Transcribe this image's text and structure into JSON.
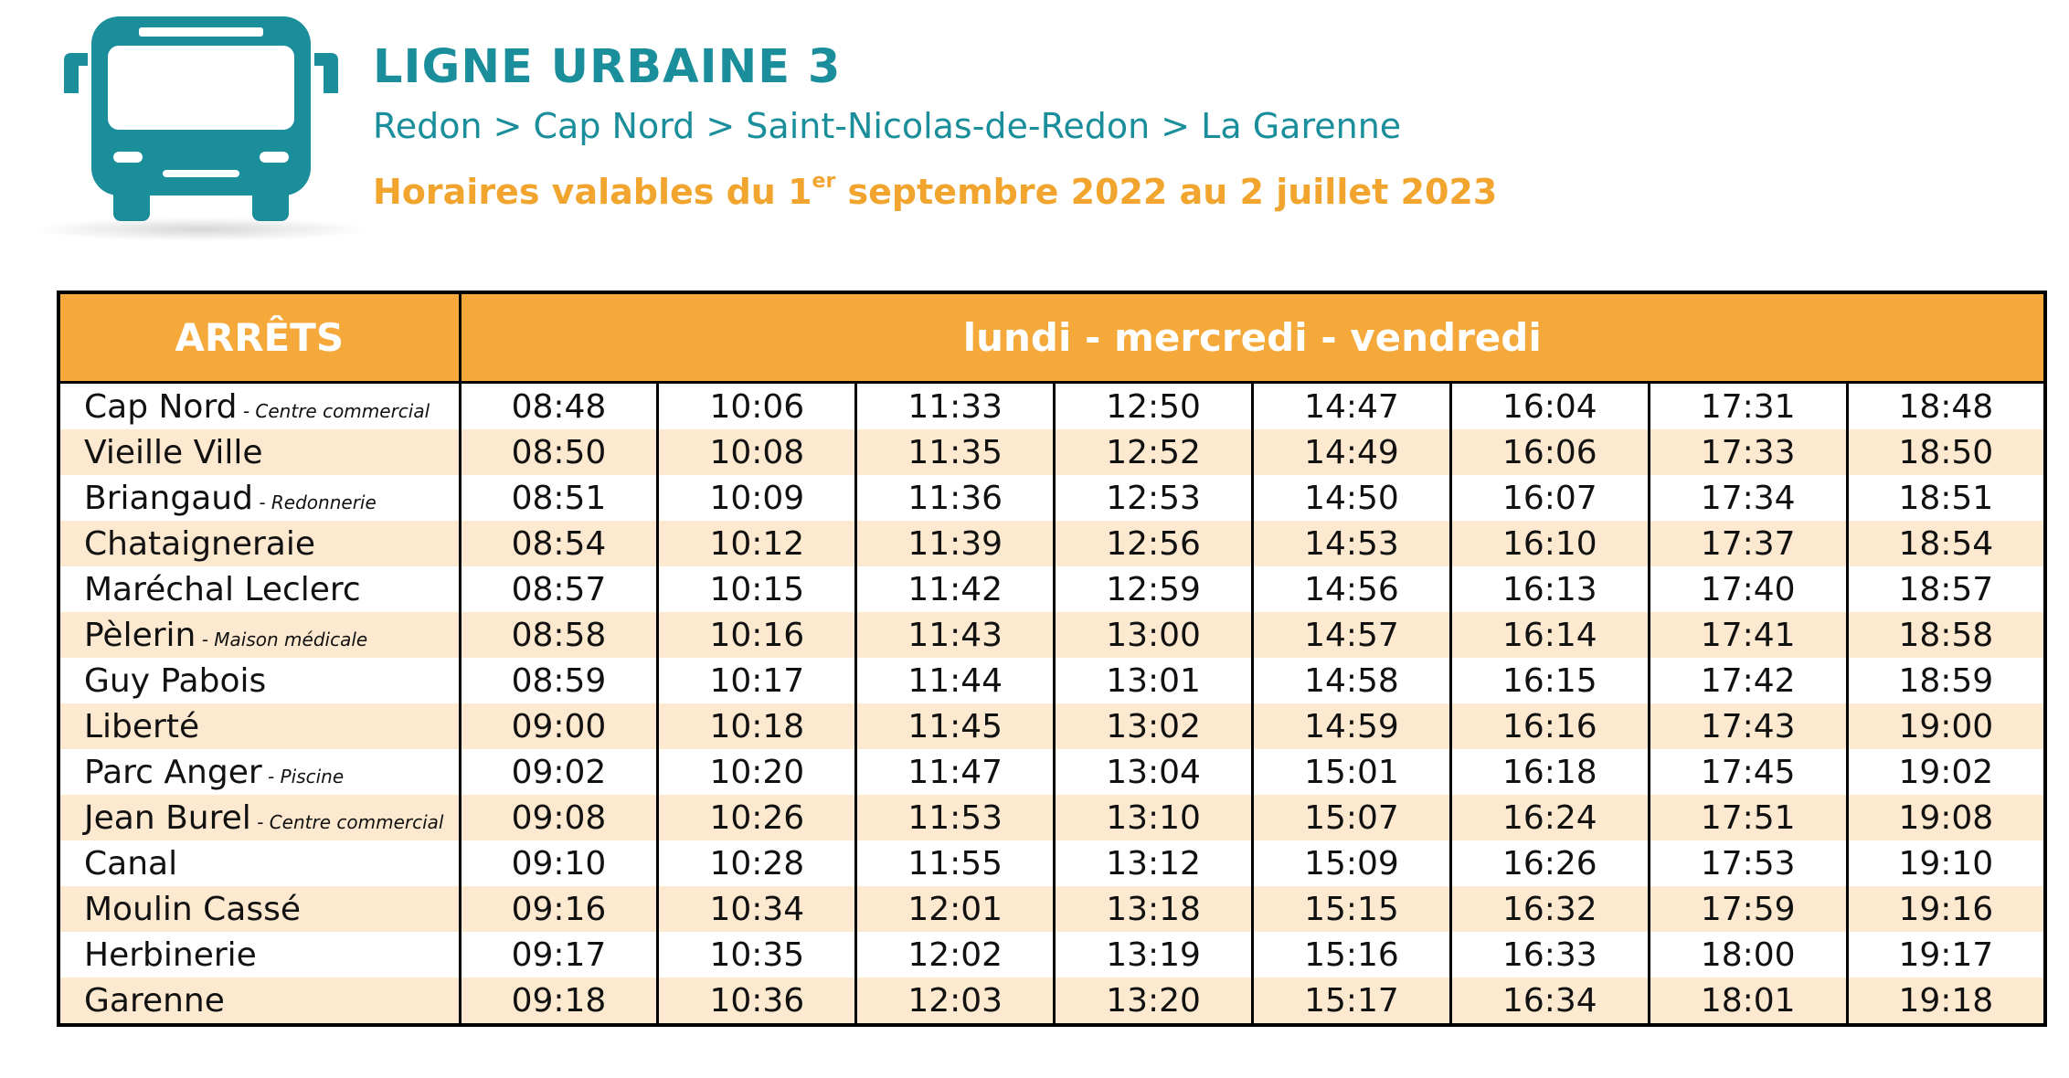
{
  "header": {
    "title": "LIGNE URBAINE 3",
    "route": "Redon > Cap Nord > Saint-Nicolas-de-Redon > La Garenne",
    "validity_before": "Horaires valables du 1",
    "validity_sup": "er",
    "validity_after": " septembre 2022 au 2 juillet 2023",
    "icon": "bus-icon"
  },
  "colors": {
    "teal": "#1a8e9b",
    "orange": "#f4a93a",
    "row_stripe": "#fde9cf"
  },
  "table": {
    "stops_header": "ARRÊTS",
    "days_header": "lundi - mercredi - vendredi",
    "rows": [
      {
        "stop": "Cap Nord",
        "detail": " - Centre commercial",
        "times": [
          "08:48",
          "10:06",
          "11:33",
          "12:50",
          "14:47",
          "16:04",
          "17:31",
          "18:48"
        ]
      },
      {
        "stop": "Vieille Ville",
        "detail": "",
        "times": [
          "08:50",
          "10:08",
          "11:35",
          "12:52",
          "14:49",
          "16:06",
          "17:33",
          "18:50"
        ]
      },
      {
        "stop": "Briangaud",
        "detail": " - Redonnerie",
        "times": [
          "08:51",
          "10:09",
          "11:36",
          "12:53",
          "14:50",
          "16:07",
          "17:34",
          "18:51"
        ]
      },
      {
        "stop": "Chataigneraie",
        "detail": "",
        "times": [
          "08:54",
          "10:12",
          "11:39",
          "12:56",
          "14:53",
          "16:10",
          "17:37",
          "18:54"
        ]
      },
      {
        "stop": "Maréchal Leclerc",
        "detail": "",
        "times": [
          "08:57",
          "10:15",
          "11:42",
          "12:59",
          "14:56",
          "16:13",
          "17:40",
          "18:57"
        ]
      },
      {
        "stop": "Pèlerin",
        "detail": " - Maison médicale",
        "times": [
          "08:58",
          "10:16",
          "11:43",
          "13:00",
          "14:57",
          "16:14",
          "17:41",
          "18:58"
        ]
      },
      {
        "stop": "Guy Pabois",
        "detail": "",
        "times": [
          "08:59",
          "10:17",
          "11:44",
          "13:01",
          "14:58",
          "16:15",
          "17:42",
          "18:59"
        ]
      },
      {
        "stop": "Liberté",
        "detail": "",
        "times": [
          "09:00",
          "10:18",
          "11:45",
          "13:02",
          "14:59",
          "16:16",
          "17:43",
          "19:00"
        ]
      },
      {
        "stop": "Parc Anger",
        "detail": " - Piscine",
        "times": [
          "09:02",
          "10:20",
          "11:47",
          "13:04",
          "15:01",
          "16:18",
          "17:45",
          "19:02"
        ]
      },
      {
        "stop": "Jean Burel",
        "detail": " - Centre commercial",
        "times": [
          "09:08",
          "10:26",
          "11:53",
          "13:10",
          "15:07",
          "16:24",
          "17:51",
          "19:08"
        ]
      },
      {
        "stop": "Canal",
        "detail": "",
        "times": [
          "09:10",
          "10:28",
          "11:55",
          "13:12",
          "15:09",
          "16:26",
          "17:53",
          "19:10"
        ]
      },
      {
        "stop": "Moulin Cassé",
        "detail": "",
        "times": [
          "09:16",
          "10:34",
          "12:01",
          "13:18",
          "15:15",
          "16:32",
          "17:59",
          "19:16"
        ]
      },
      {
        "stop": "Herbinerie",
        "detail": "",
        "times": [
          "09:17",
          "10:35",
          "12:02",
          "13:19",
          "15:16",
          "16:33",
          "18:00",
          "19:17"
        ]
      },
      {
        "stop": "Garenne",
        "detail": "",
        "times": [
          "09:18",
          "10:36",
          "12:03",
          "13:20",
          "15:17",
          "16:34",
          "18:01",
          "19:18"
        ]
      }
    ]
  }
}
